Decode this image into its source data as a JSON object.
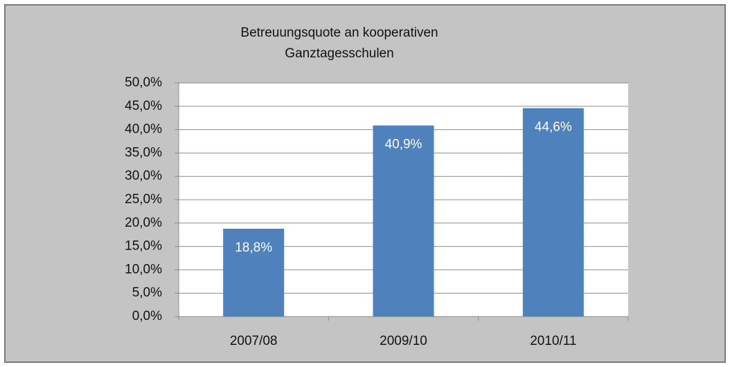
{
  "chart_data": {
    "type": "bar",
    "title": [
      "Betreuungsquote an kooperativen",
      "Ganztagesschulen"
    ],
    "categories": [
      "2007/08",
      "2009/10",
      "2010/11"
    ],
    "values": [
      18.8,
      40.9,
      44.6
    ],
    "value_labels": [
      "18,8%",
      "40,9%",
      "44,6%"
    ],
    "color": "#4f81bd",
    "ylim": [
      0,
      50
    ],
    "yticks": [
      {
        "value": 0,
        "label": "0,0%"
      },
      {
        "value": 5,
        "label": "5,0%"
      },
      {
        "value": 10,
        "label": "10,0%"
      },
      {
        "value": 15,
        "label": "15,0%"
      },
      {
        "value": 20,
        "label": "20,0%"
      },
      {
        "value": 25,
        "label": "25,0%"
      },
      {
        "value": 30,
        "label": "30,0%"
      },
      {
        "value": 35,
        "label": "35,0%"
      },
      {
        "value": 40,
        "label": "40,0%"
      },
      {
        "value": 45,
        "label": "45,0%"
      },
      {
        "value": 50,
        "label": "50,0%"
      }
    ],
    "grid": true
  }
}
